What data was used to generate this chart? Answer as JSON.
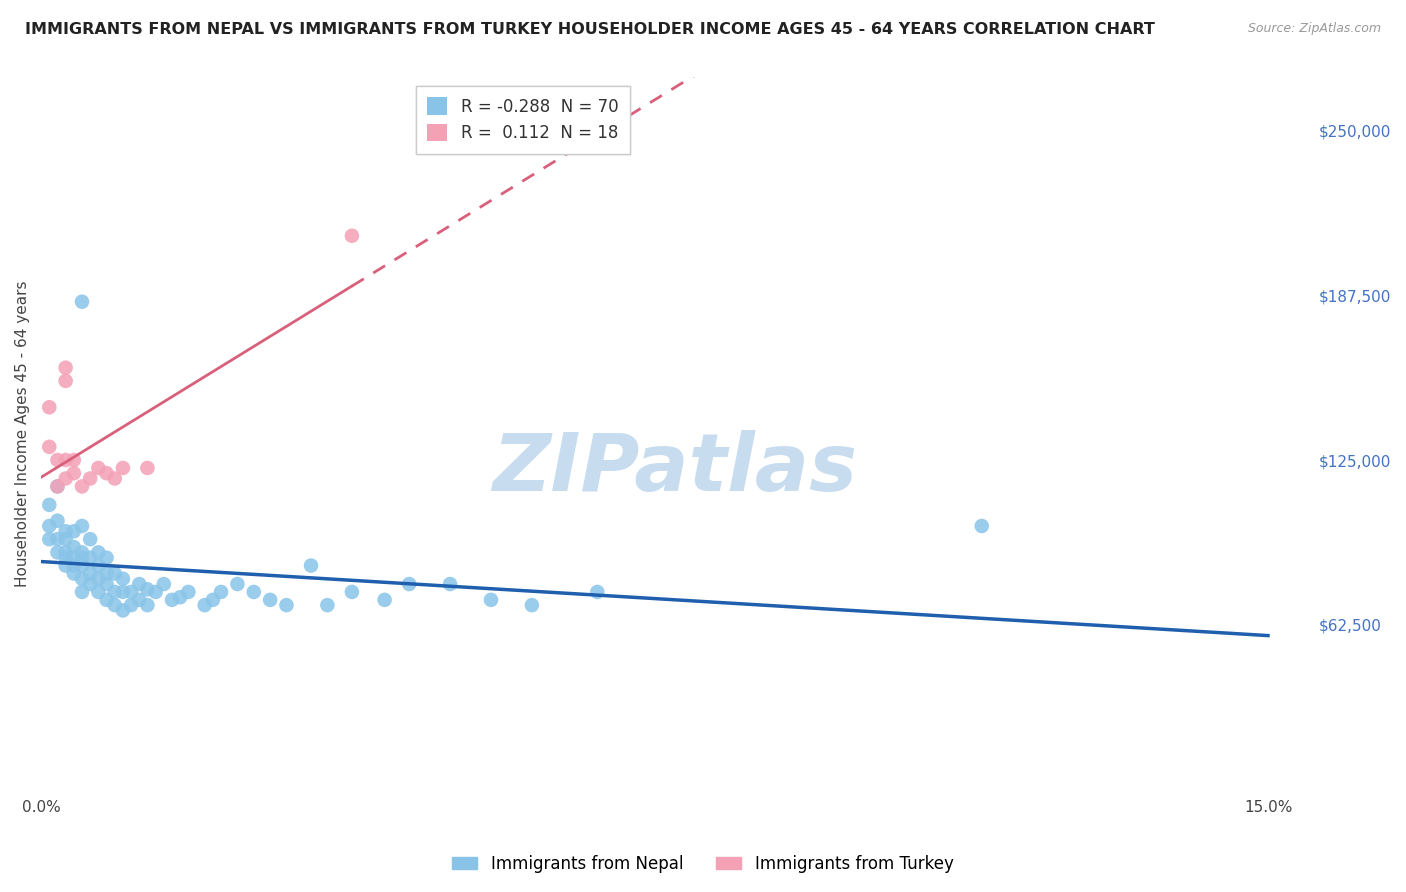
{
  "title": "IMMIGRANTS FROM NEPAL VS IMMIGRANTS FROM TURKEY HOUSEHOLDER INCOME AGES 45 - 64 YEARS CORRELATION CHART",
  "source": "Source: ZipAtlas.com",
  "ylabel": "Householder Income Ages 45 - 64 years",
  "xlim": [
    0.0,
    0.155
  ],
  "ylim": [
    0,
    270000
  ],
  "nepal_R": -0.288,
  "nepal_N": 70,
  "turkey_R": 0.112,
  "turkey_N": 18,
  "nepal_color": "#89C4E8",
  "turkey_color": "#F4A0B5",
  "nepal_line_color": "#1F5FAD",
  "turkey_line_color": "#D9607A",
  "background_color": "#FFFFFF",
  "grid_color": "#DCDCDC",
  "watermark_text": "ZIPatlas",
  "watermark_color": "#C8DCF0",
  "ytick_vals": [
    62500,
    125000,
    187500,
    250000
  ],
  "ytick_labels": [
    "$62,500",
    "$125,000",
    "$187,500",
    "$250,000"
  ],
  "xtick_vals": [
    0.0,
    0.05,
    0.1,
    0.15
  ],
  "xtick_labels": [
    "0.0%",
    "",
    "",
    "15.0%"
  ],
  "title_fontsize": 11.5,
  "axis_label_fontsize": 11,
  "tick_fontsize": 11,
  "legend_fontsize": 12,
  "nepal_x": [
    0.001,
    0.001,
    0.001,
    0.002,
    0.002,
    0.002,
    0.002,
    0.003,
    0.003,
    0.003,
    0.003,
    0.003,
    0.004,
    0.004,
    0.004,
    0.004,
    0.004,
    0.005,
    0.005,
    0.005,
    0.005,
    0.005,
    0.005,
    0.006,
    0.006,
    0.006,
    0.006,
    0.007,
    0.007,
    0.007,
    0.007,
    0.008,
    0.008,
    0.008,
    0.008,
    0.009,
    0.009,
    0.009,
    0.01,
    0.01,
    0.01,
    0.011,
    0.011,
    0.012,
    0.012,
    0.013,
    0.013,
    0.014,
    0.015,
    0.016,
    0.017,
    0.018,
    0.02,
    0.021,
    0.022,
    0.024,
    0.026,
    0.028,
    0.03,
    0.033,
    0.035,
    0.038,
    0.042,
    0.045,
    0.05,
    0.055,
    0.06,
    0.068,
    0.115,
    0.005
  ],
  "nepal_y": [
    100000,
    95000,
    108000,
    90000,
    95000,
    102000,
    115000,
    85000,
    90000,
    98000,
    88000,
    95000,
    82000,
    88000,
    92000,
    85000,
    98000,
    75000,
    80000,
    85000,
    90000,
    88000,
    100000,
    78000,
    82000,
    88000,
    95000,
    75000,
    80000,
    85000,
    90000,
    72000,
    78000,
    82000,
    88000,
    70000,
    75000,
    82000,
    68000,
    75000,
    80000,
    70000,
    75000,
    72000,
    78000,
    70000,
    76000,
    75000,
    78000,
    72000,
    73000,
    75000,
    70000,
    72000,
    75000,
    78000,
    75000,
    72000,
    70000,
    85000,
    70000,
    75000,
    72000,
    78000,
    78000,
    72000,
    70000,
    75000,
    100000,
    185000
  ],
  "turkey_x": [
    0.001,
    0.001,
    0.002,
    0.002,
    0.003,
    0.003,
    0.003,
    0.004,
    0.004,
    0.005,
    0.006,
    0.007,
    0.008,
    0.009,
    0.01,
    0.013,
    0.038,
    0.003
  ],
  "turkey_y": [
    130000,
    145000,
    115000,
    125000,
    118000,
    125000,
    155000,
    120000,
    125000,
    115000,
    118000,
    122000,
    120000,
    118000,
    122000,
    122000,
    210000,
    160000
  ]
}
